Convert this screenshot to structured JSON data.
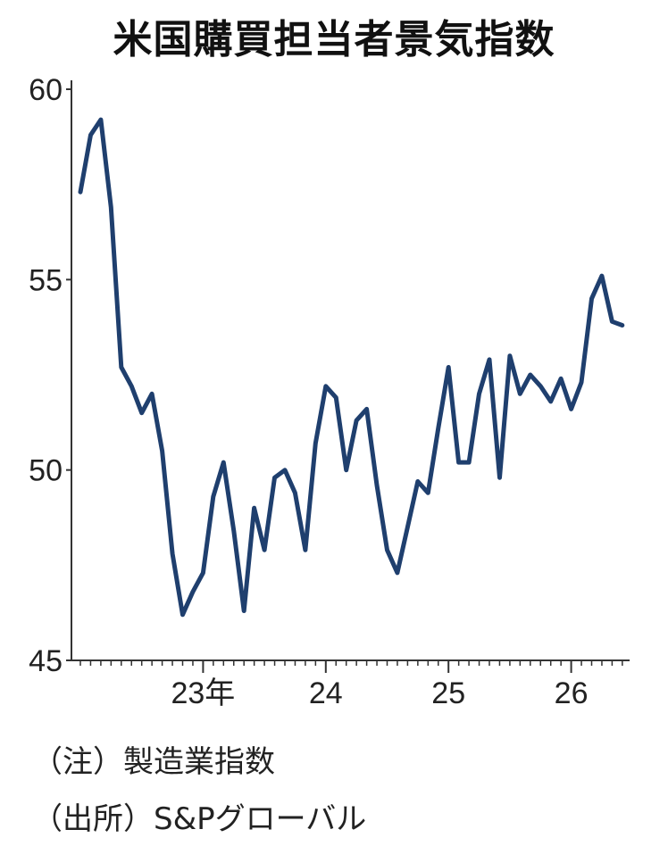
{
  "title": "米国購買担当者景気指数",
  "notes": {
    "note": "（注）製造業指数",
    "source": "（出所）S&Pグローバル"
  },
  "colors": {
    "line": "#1f3f6e",
    "axis": "#333333"
  },
  "chart_data": {
    "type": "line",
    "title": "米国購買担当者景気指数",
    "xlabel": "",
    "ylabel": "",
    "ylim": [
      45,
      60
    ],
    "yticks": [
      45,
      50,
      55,
      60
    ],
    "xtick_labels": [
      {
        "label": "23年",
        "month": "2023-01"
      },
      {
        "label": "24",
        "month": "2024-01"
      },
      {
        "label": "25",
        "month": "2025-01"
      },
      {
        "label": "26",
        "month": "2026-01"
      }
    ],
    "grid": false,
    "series": [
      {
        "x": [
          "2022-01",
          "2022-02",
          "2022-03",
          "2022-04",
          "2022-05",
          "2022-06",
          "2022-07",
          "2022-08",
          "2022-09",
          "2022-10",
          "2022-11",
          "2022-12",
          "2023-01",
          "2023-02",
          "2023-03",
          "2023-04",
          "2023-05",
          "2023-06",
          "2023-07",
          "2023-08",
          "2023-09",
          "2023-10",
          "2023-11",
          "2023-12",
          "2024-01",
          "2024-02",
          "2024-03",
          "2024-04",
          "2024-05",
          "2024-06",
          "2024-07",
          "2024-08",
          "2024-09",
          "2024-10",
          "2024-11",
          "2024-12",
          "2025-01",
          "2025-02",
          "2025-03",
          "2025-04",
          "2025-05",
          "2025-06",
          "2025-07",
          "2025-08",
          "2025-09",
          "2025-10",
          "2025-11",
          "2025-12",
          "2026-01",
          "2026-02",
          "2026-03",
          "2026-04",
          "2026-05",
          "2026-06"
        ],
        "values": [
          57.3,
          58.8,
          59.2,
          56.9,
          52.7,
          52.2,
          51.5,
          52.0,
          50.5,
          47.8,
          46.2,
          46.8,
          47.3,
          49.3,
          50.2,
          48.4,
          46.3,
          49.0,
          47.9,
          49.8,
          50.0,
          49.4,
          47.9,
          50.7,
          52.2,
          51.9,
          50.0,
          51.3,
          51.6,
          49.6,
          47.9,
          47.3,
          48.5,
          49.7,
          49.4,
          51.1,
          52.7,
          50.2,
          50.2,
          52.0,
          52.9,
          49.8,
          53.0,
          52.0,
          52.5,
          52.2,
          51.8,
          52.4,
          51.6,
          52.3,
          54.5,
          55.1,
          53.9,
          53.8
        ]
      }
    ]
  }
}
